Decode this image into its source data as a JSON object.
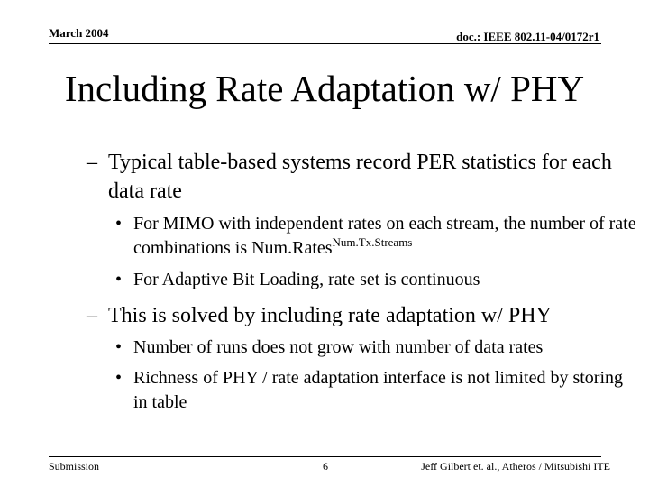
{
  "header": {
    "date": "March 2004",
    "doc_id": "doc.: IEEE 802.11-04/0172r1"
  },
  "title": "Including Rate Adaptation w/ PHY",
  "content": {
    "dash_glyph": "–",
    "bullet_glyph": "•",
    "point1": {
      "text": "Typical table-based systems record PER statistics for each data rate",
      "subpoints": [
        {
          "text": "For MIMO with independent rates on each stream, the number of rate combinations is Num.Rates",
          "superscript": "Num.Tx.Streams"
        },
        {
          "text": "For Adaptive Bit Loading, rate set is continuous"
        }
      ]
    },
    "point2": {
      "text": "This is solved by including rate adaptation w/ PHY",
      "subpoints": [
        {
          "text": "Number of runs does not grow with number of data rates"
        },
        {
          "text": "Richness of PHY / rate adaptation interface is not limited by storing in table"
        }
      ]
    }
  },
  "footer": {
    "left": "Submission",
    "page": "6",
    "right": "Jeff Gilbert et. al., Atheros / Mitsubishi ITE"
  }
}
